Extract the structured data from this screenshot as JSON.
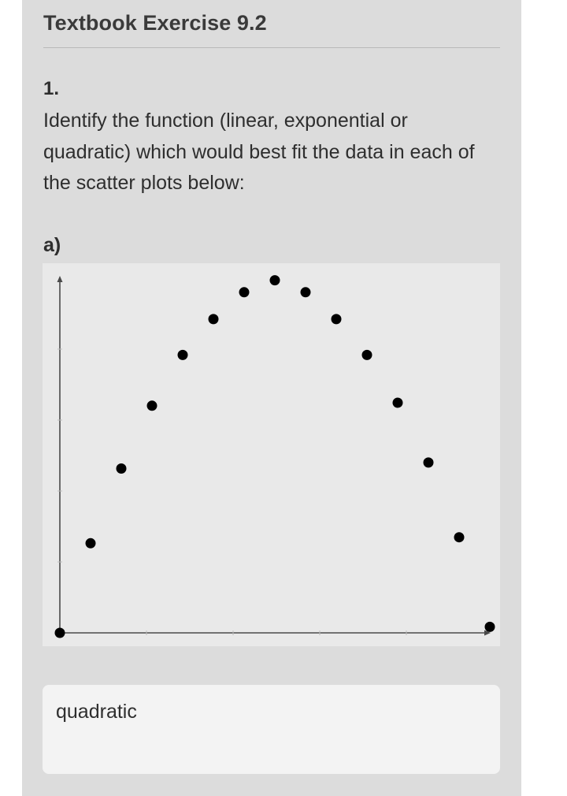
{
  "header": {
    "title": "Textbook Exercise 9.2"
  },
  "question": {
    "number": "1.",
    "text": "Identify the function (linear, exponential or quadratic) which would best fit the data in each of the scatter plots below:"
  },
  "part": {
    "label": "a)"
  },
  "chart_data": {
    "type": "scatter",
    "title": "",
    "xlabel": "",
    "ylabel": "",
    "grid": false,
    "tick_labels": false,
    "xlim": [
      0,
      14
    ],
    "ylim": [
      0,
      12
    ],
    "x": [
      0,
      1,
      2,
      3,
      4,
      5,
      6,
      7,
      8,
      9,
      10,
      11,
      12,
      13,
      14
    ],
    "y": [
      0,
      3,
      5.5,
      7.6,
      9.3,
      10.5,
      11.4,
      11.8,
      11.4,
      10.5,
      9.3,
      7.7,
      5.7,
      3.2,
      0.2
    ],
    "color": "#000000"
  },
  "answer": {
    "value": "quadratic"
  }
}
